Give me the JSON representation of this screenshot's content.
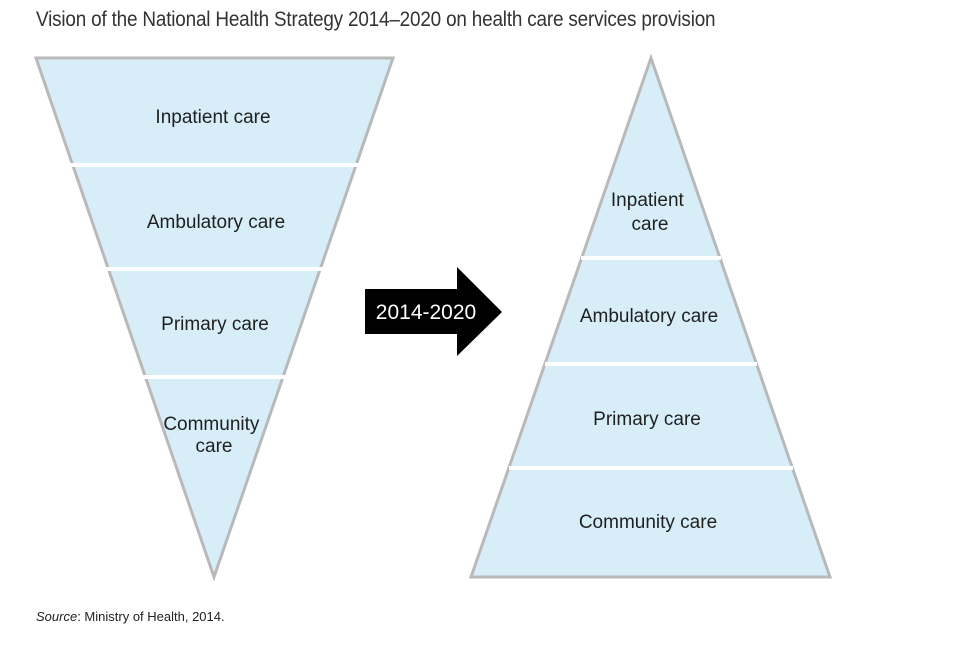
{
  "title": "Vision of the National Health Strategy 2014–2020 on health care services provision",
  "source": {
    "label": "Source",
    "text": ": Ministry of Health, 2014."
  },
  "colors": {
    "fill": "#d7eef9",
    "edge": "#b9b9b9",
    "separator": "#ffffff",
    "arrow": "#000000"
  },
  "arrow": {
    "label": "2014-2020"
  },
  "current_pyramid": {
    "layers": [
      {
        "lines": [
          "Inpatient care"
        ]
      },
      {
        "lines": [
          "Ambulatory care"
        ]
      },
      {
        "lines": [
          "Primary care"
        ]
      },
      {
        "lines": [
          "Community",
          "care"
        ]
      }
    ]
  },
  "target_pyramid": {
    "layers": [
      {
        "lines": [
          "Inpatient",
          "care"
        ]
      },
      {
        "lines": [
          "Ambulatory care"
        ]
      },
      {
        "lines": [
          "Primary care"
        ]
      },
      {
        "lines": [
          "Community care"
        ]
      }
    ]
  }
}
